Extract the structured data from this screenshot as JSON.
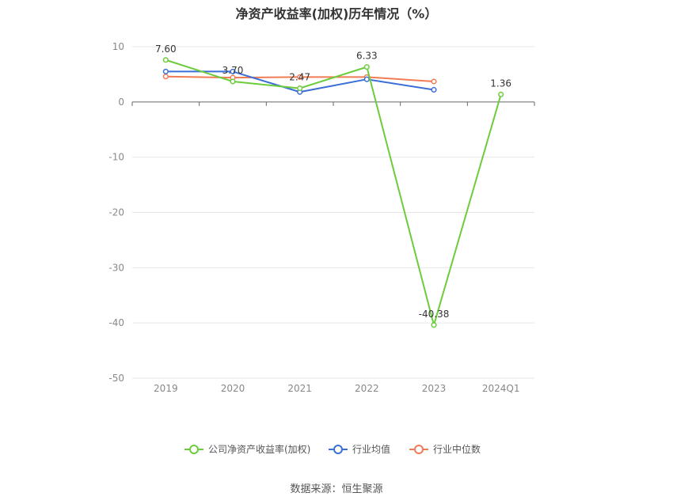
{
  "title": "净资产收益率(加权)历年情况（%）",
  "source": "数据来源：恒生聚源",
  "colors": {
    "company": "#6dcc3c",
    "industry_avg": "#3b6fd6",
    "industry_median": "#f07c55",
    "grid": "#e6e6e6",
    "axis": "#666666",
    "tick_text": "#888888",
    "label_text": "#333333"
  },
  "chart_data": {
    "type": "line",
    "categories": [
      "2019",
      "2020",
      "2021",
      "2022",
      "2023",
      "2024Q1"
    ],
    "ylim": [
      -50,
      10
    ],
    "yticks": [
      10,
      0,
      -10,
      -20,
      -30,
      -40,
      -50
    ],
    "grid": true,
    "legend_position": "bottom",
    "series": [
      {
        "name": "公司净资产收益率(加权)",
        "color_key": "company",
        "values": [
          7.6,
          3.7,
          2.47,
          6.33,
          -40.38,
          1.36
        ],
        "labels": [
          "7.60",
          "3.70",
          "2.47",
          "6.33",
          "-40.38",
          "1.36"
        ]
      },
      {
        "name": "行业均值",
        "color_key": "industry_avg",
        "values": [
          5.5,
          5.5,
          1.8,
          4.1,
          2.2,
          null
        ]
      },
      {
        "name": "行业中位数",
        "color_key": "industry_median",
        "values": [
          4.6,
          4.4,
          4.5,
          4.5,
          3.7,
          null
        ]
      }
    ]
  }
}
